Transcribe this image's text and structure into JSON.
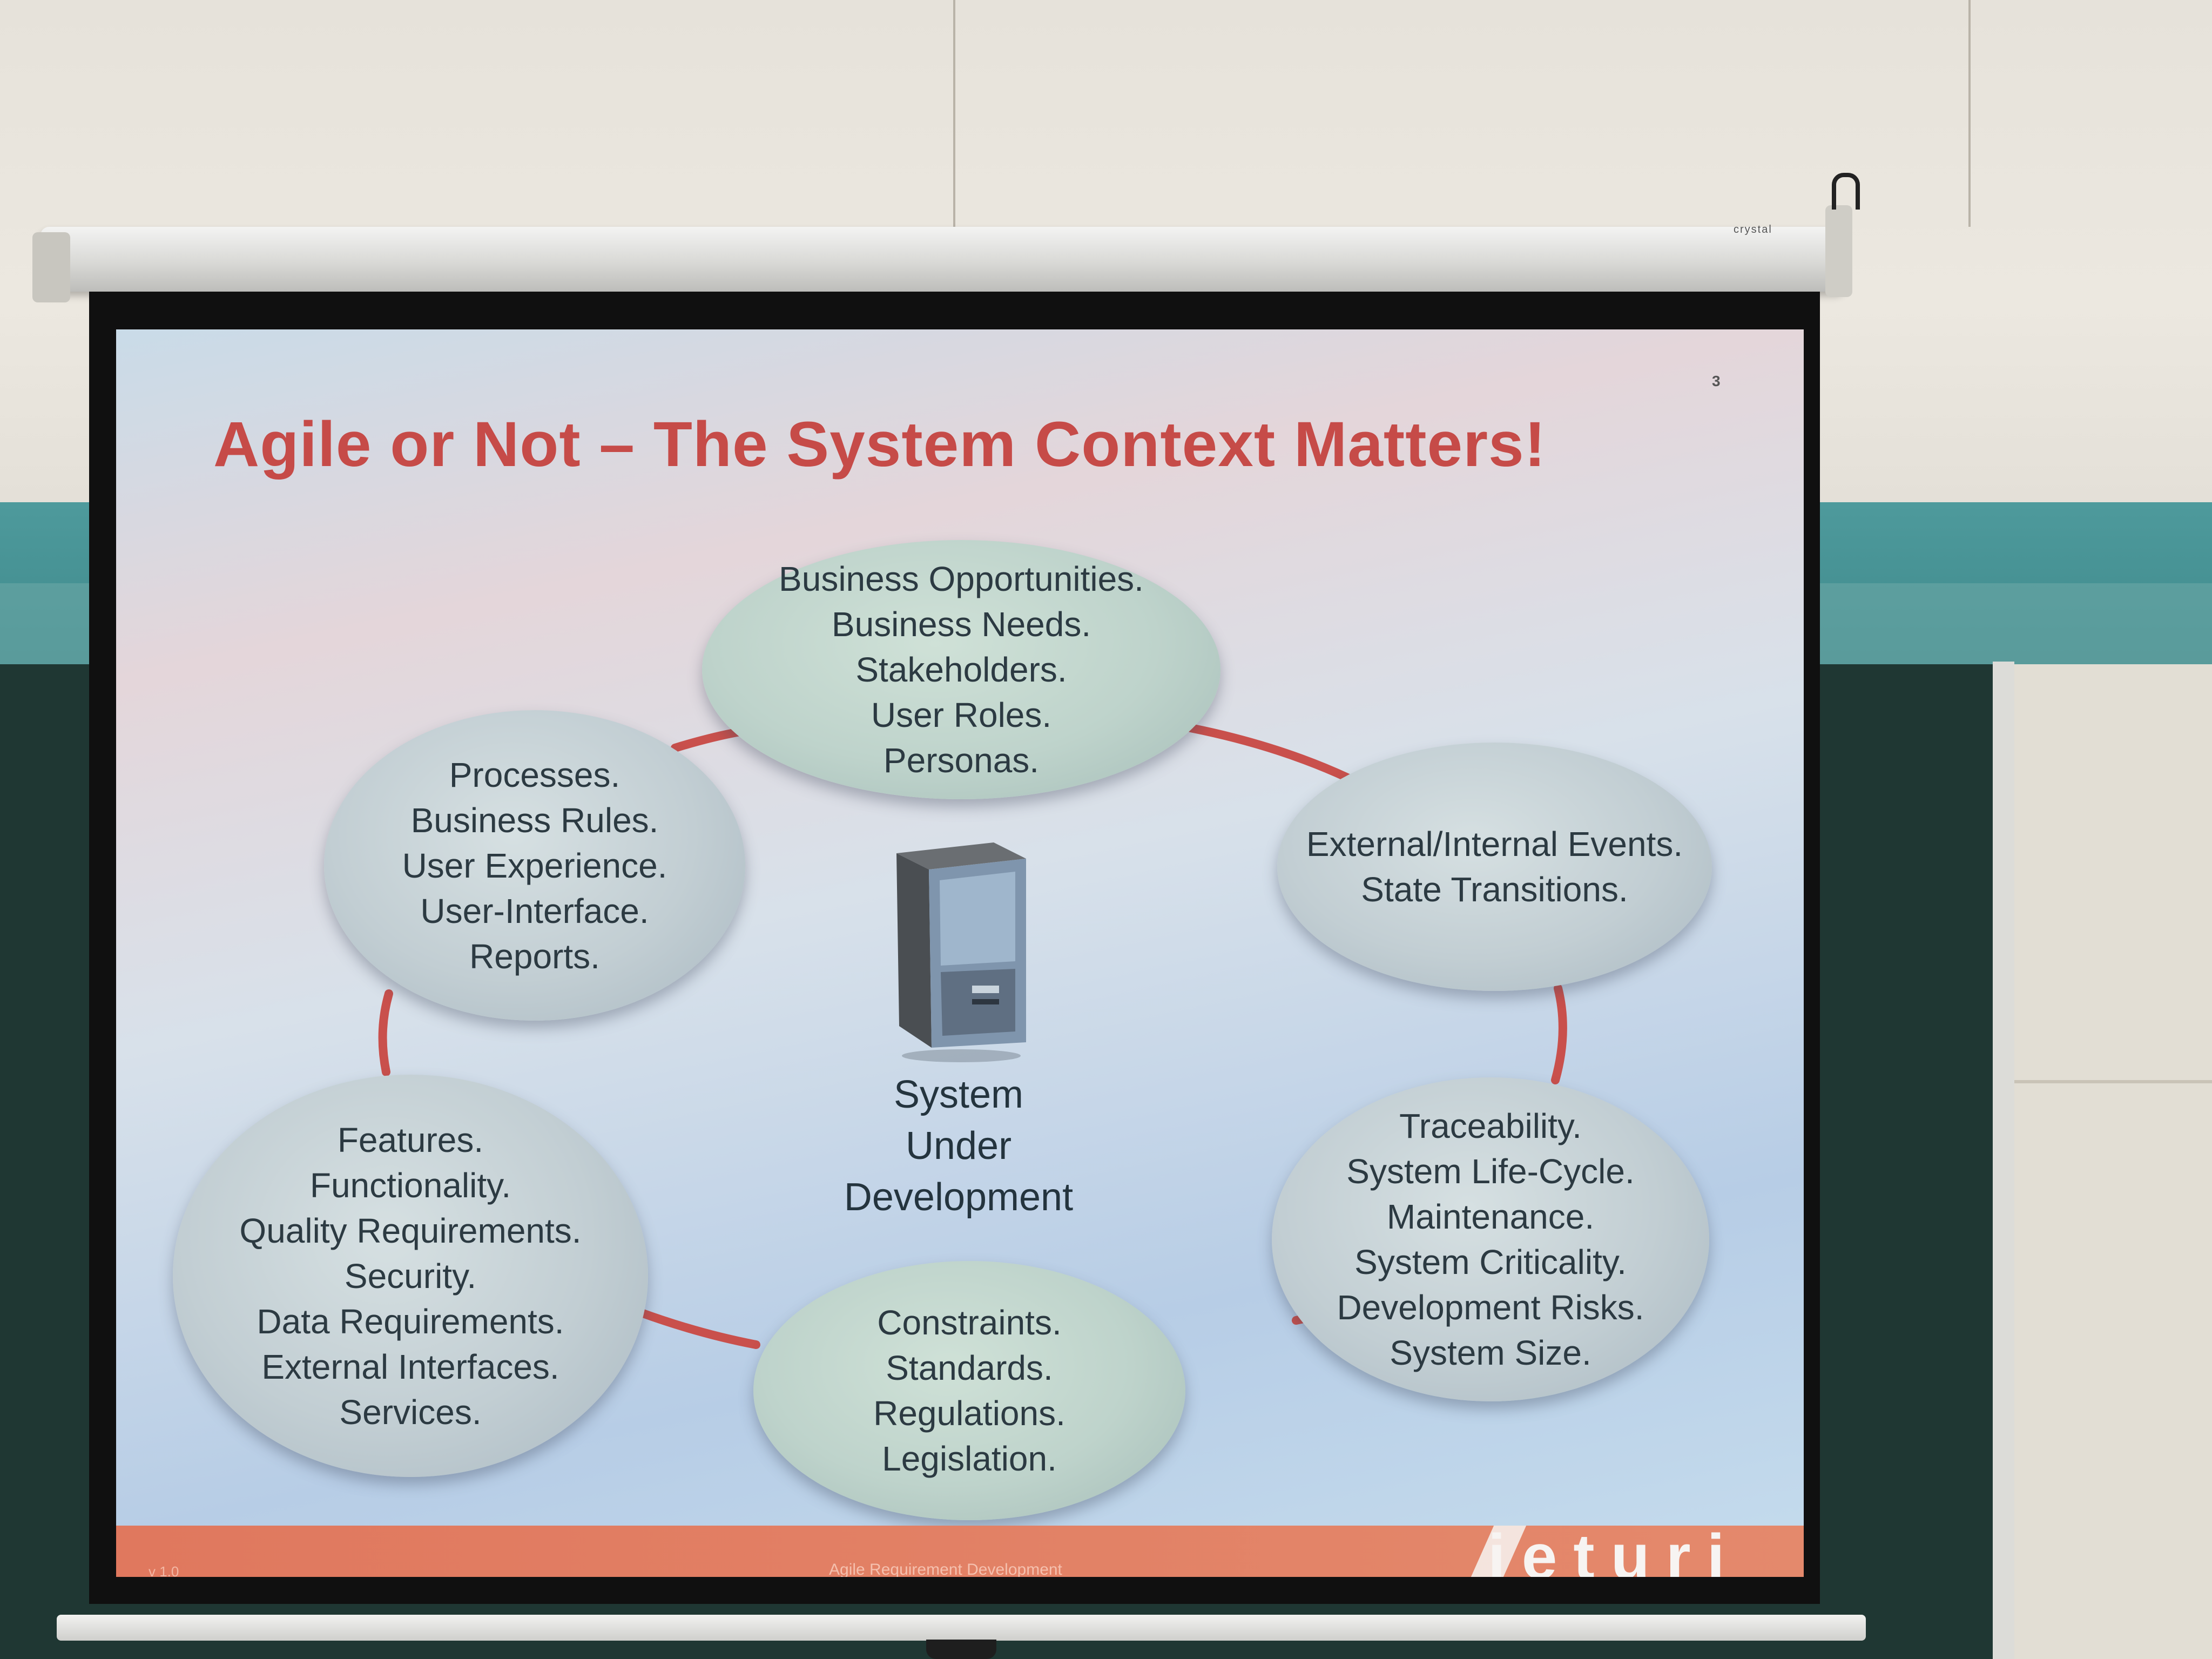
{
  "screen_brand": "crystal",
  "slide": {
    "title": "Agile or Not – The System Context Matters!",
    "page_number": "3",
    "center_label": [
      "System",
      "Under",
      "Development"
    ],
    "bubbles": {
      "top": [
        "Business Opportunities.",
        "Business Needs.",
        "Stakeholders.",
        "User Roles.",
        "Personas."
      ],
      "left_upper": [
        "Processes.",
        "Business Rules.",
        "User Experience.",
        "User-Interface.",
        "Reports."
      ],
      "right_upper": [
        "External/Internal Events.",
        "State Transitions."
      ],
      "left_lower": [
        "Features.",
        "Functionality.",
        "Quality Requirements.",
        "Security.",
        "Data Requirements.",
        "External Interfaces.",
        "Services."
      ],
      "bottom": [
        "Constraints.",
        "Standards.",
        "Regulations.",
        "Legislation."
      ],
      "right_lower": [
        "Traceability.",
        "System Life-Cycle.",
        "Maintenance.",
        "System Criticality.",
        "Development Risks.",
        "System Size."
      ]
    },
    "footer": {
      "version": "v 1.0",
      "course": "Agile Requirement Development",
      "logo": "ieturi"
    },
    "colors": {
      "title": "#c64b48",
      "connector": "#c9504c",
      "footer": "#e0785e"
    }
  }
}
